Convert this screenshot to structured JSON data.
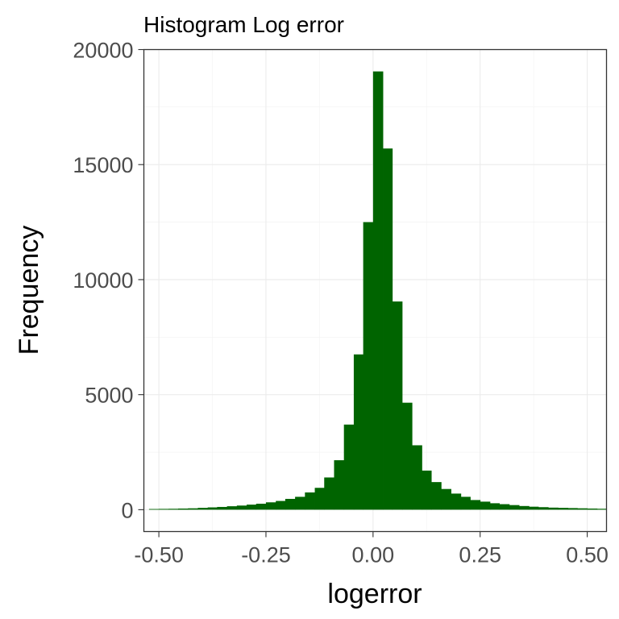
{
  "chart_data": {
    "type": "bar",
    "title": "Histogram Log error",
    "xlabel": "logerror",
    "ylabel": "Frequency",
    "xlim": [
      -0.535,
      0.545
    ],
    "ylim": [
      -950,
      20000
    ],
    "x_ticks": [
      {
        "value": -0.5,
        "label": "-0.50"
      },
      {
        "value": -0.25,
        "label": "-0.25"
      },
      {
        "value": 0.0,
        "label": "0.00"
      },
      {
        "value": 0.25,
        "label": "0.25"
      },
      {
        "value": 0.5,
        "label": "0.50"
      }
    ],
    "y_ticks": [
      {
        "value": 0,
        "label": "0"
      },
      {
        "value": 5000,
        "label": "5000"
      },
      {
        "value": 10000,
        "label": "10000"
      },
      {
        "value": 15000,
        "label": "15000"
      },
      {
        "value": 20000,
        "label": "20000"
      }
    ],
    "grid": true,
    "bin_width": 0.0227,
    "bar_color": "#006400",
    "bins": [
      {
        "x0": -0.523,
        "x1": -0.5,
        "count": 30
      },
      {
        "x0": -0.5,
        "x1": -0.477,
        "count": 35
      },
      {
        "x0": -0.477,
        "x1": -0.455,
        "count": 40
      },
      {
        "x0": -0.455,
        "x1": -0.432,
        "count": 50
      },
      {
        "x0": -0.432,
        "x1": -0.409,
        "count": 60
      },
      {
        "x0": -0.409,
        "x1": -0.386,
        "count": 80
      },
      {
        "x0": -0.386,
        "x1": -0.364,
        "count": 100
      },
      {
        "x0": -0.364,
        "x1": -0.341,
        "count": 120
      },
      {
        "x0": -0.341,
        "x1": -0.318,
        "count": 150
      },
      {
        "x0": -0.318,
        "x1": -0.295,
        "count": 180
      },
      {
        "x0": -0.295,
        "x1": -0.273,
        "count": 220
      },
      {
        "x0": -0.273,
        "x1": -0.25,
        "count": 260
      },
      {
        "x0": -0.25,
        "x1": -0.227,
        "count": 320
      },
      {
        "x0": -0.227,
        "x1": -0.205,
        "count": 380
      },
      {
        "x0": -0.205,
        "x1": -0.182,
        "count": 470
      },
      {
        "x0": -0.182,
        "x1": -0.159,
        "count": 560
      },
      {
        "x0": -0.159,
        "x1": -0.136,
        "count": 750
      },
      {
        "x0": -0.136,
        "x1": -0.114,
        "count": 950
      },
      {
        "x0": -0.114,
        "x1": -0.091,
        "count": 1400
      },
      {
        "x0": -0.091,
        "x1": -0.068,
        "count": 2150
      },
      {
        "x0": -0.068,
        "x1": -0.045,
        "count": 3700
      },
      {
        "x0": -0.045,
        "x1": -0.023,
        "count": 6750
      },
      {
        "x0": -0.023,
        "x1": 0.0,
        "count": 12500
      },
      {
        "x0": 0.0,
        "x1": 0.023,
        "count": 19050
      },
      {
        "x0": 0.023,
        "x1": 0.045,
        "count": 15700
      },
      {
        "x0": 0.045,
        "x1": 0.068,
        "count": 9050
      },
      {
        "x0": 0.068,
        "x1": 0.091,
        "count": 4650
      },
      {
        "x0": 0.091,
        "x1": 0.114,
        "count": 2800
      },
      {
        "x0": 0.114,
        "x1": 0.136,
        "count": 1700
      },
      {
        "x0": 0.136,
        "x1": 0.159,
        "count": 1200
      },
      {
        "x0": 0.159,
        "x1": 0.182,
        "count": 900
      },
      {
        "x0": 0.182,
        "x1": 0.205,
        "count": 700
      },
      {
        "x0": 0.205,
        "x1": 0.227,
        "count": 560
      },
      {
        "x0": 0.227,
        "x1": 0.25,
        "count": 420
      },
      {
        "x0": 0.25,
        "x1": 0.273,
        "count": 350
      },
      {
        "x0": 0.273,
        "x1": 0.295,
        "count": 280
      },
      {
        "x0": 0.295,
        "x1": 0.318,
        "count": 240
      },
      {
        "x0": 0.318,
        "x1": 0.341,
        "count": 200
      },
      {
        "x0": 0.341,
        "x1": 0.364,
        "count": 160
      },
      {
        "x0": 0.364,
        "x1": 0.386,
        "count": 130
      },
      {
        "x0": 0.386,
        "x1": 0.409,
        "count": 110
      },
      {
        "x0": 0.409,
        "x1": 0.432,
        "count": 90
      },
      {
        "x0": 0.432,
        "x1": 0.455,
        "count": 80
      },
      {
        "x0": 0.455,
        "x1": 0.477,
        "count": 70
      },
      {
        "x0": 0.477,
        "x1": 0.5,
        "count": 60
      },
      {
        "x0": 0.5,
        "x1": 0.523,
        "count": 50
      },
      {
        "x0": 0.523,
        "x1": 0.545,
        "count": 40
      }
    ]
  }
}
